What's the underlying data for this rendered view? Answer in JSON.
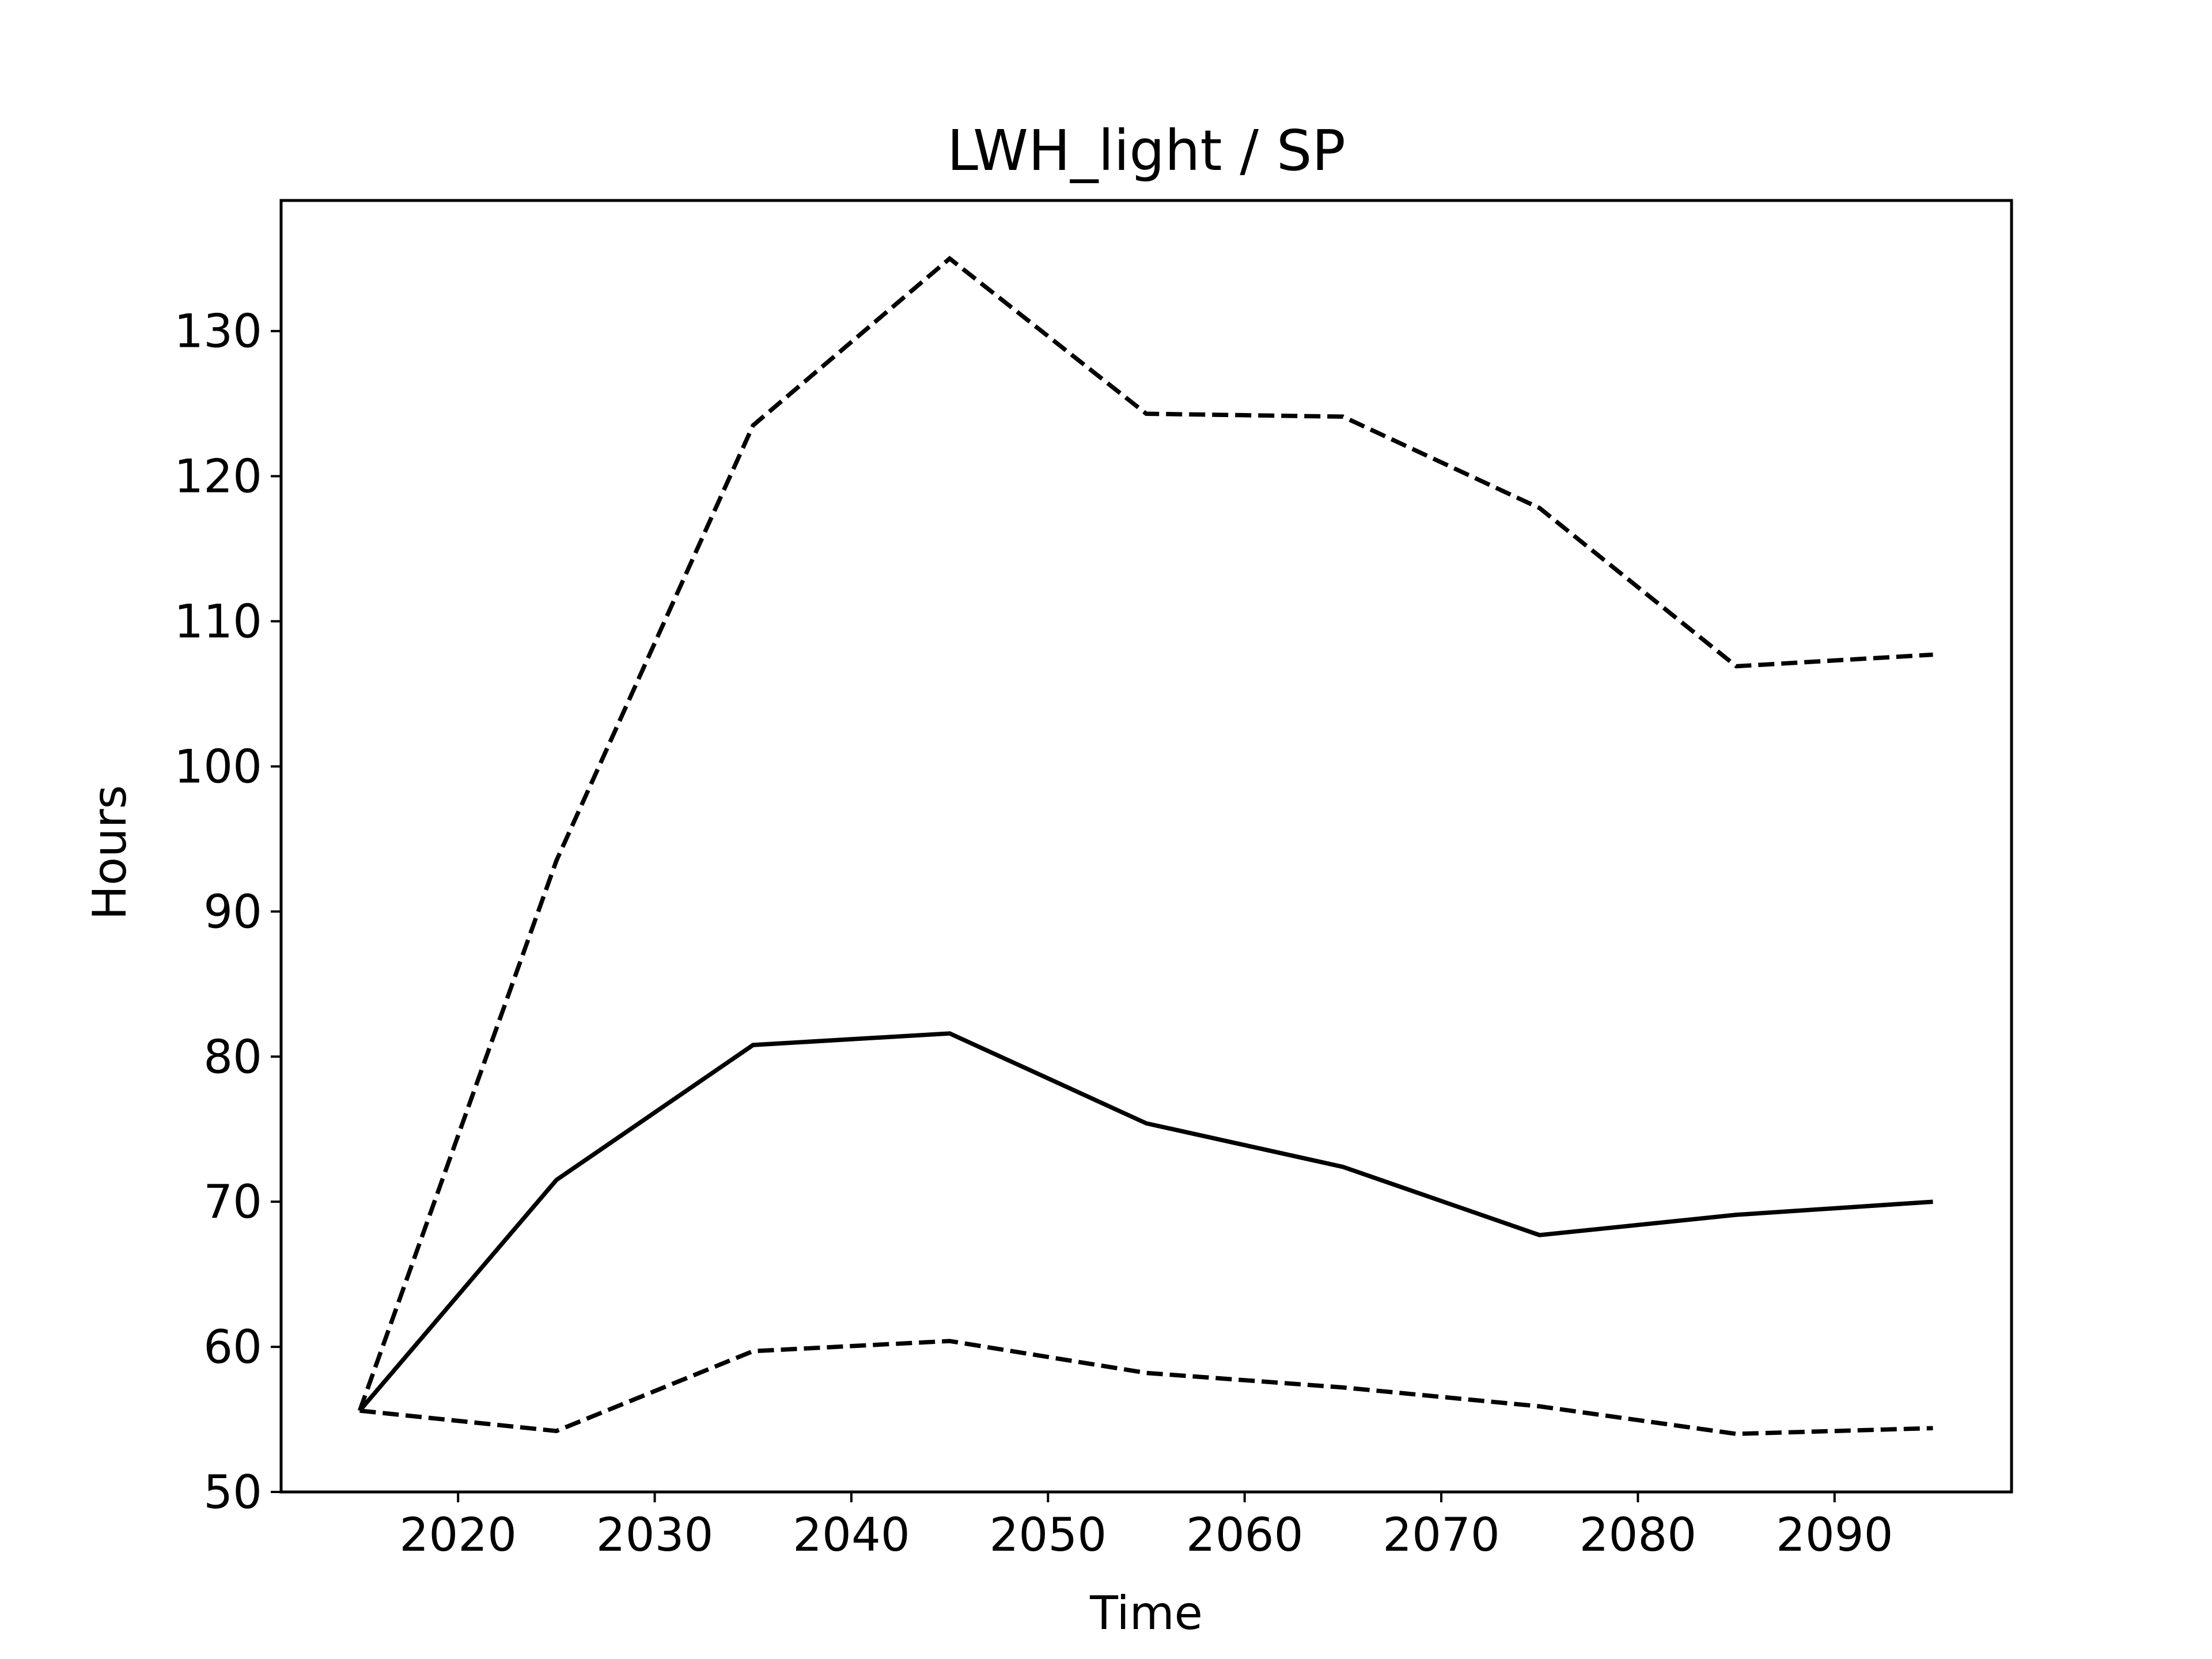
{
  "chart_data": {
    "type": "line",
    "title": "LWH_light / SP",
    "xlabel": "Time",
    "ylabel": "Hours",
    "xlim": [
      2011,
      2099
    ],
    "ylim": [
      50,
      139
    ],
    "xticks": [
      2020,
      2030,
      2040,
      2050,
      2060,
      2070,
      2080,
      2090
    ],
    "yticks": [
      50,
      60,
      70,
      80,
      90,
      100,
      110,
      120,
      130
    ],
    "grid": false,
    "x": [
      2015,
      2025,
      2035,
      2045,
      2055,
      2065,
      2075,
      2085,
      2095
    ],
    "series": [
      {
        "style": "dashed",
        "color": "#000000",
        "values": [
          55.6,
          93.5,
          123.5,
          135.0,
          124.3,
          124.1,
          117.8,
          106.9,
          107.7
        ]
      },
      {
        "style": "solid",
        "color": "#000000",
        "values": [
          55.6,
          71.5,
          80.8,
          81.6,
          75.4,
          72.4,
          67.7,
          69.1,
          70.0
        ]
      },
      {
        "style": "dashed",
        "color": "#000000",
        "values": [
          55.6,
          54.2,
          59.7,
          60.4,
          58.2,
          57.2,
          55.9,
          54.0,
          54.4
        ]
      }
    ]
  }
}
